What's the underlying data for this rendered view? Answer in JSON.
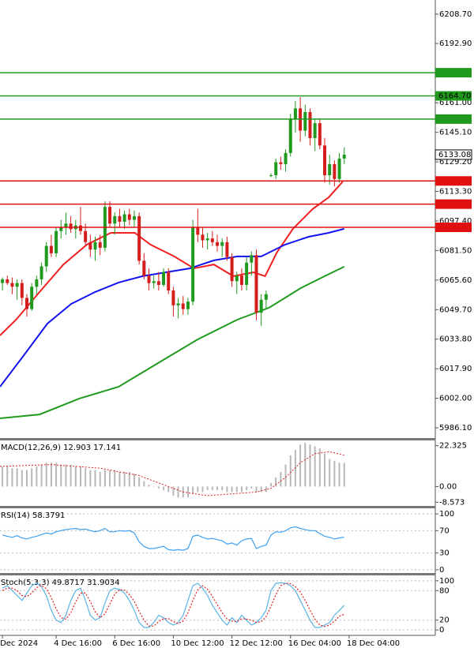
{
  "chart_data": [
    {
      "type": "candlestick",
      "xlim": [
        -0.5,
        88.65
      ],
      "ylim": [
        5980.6,
        6216.3
      ],
      "yticks": [
        {
          "value": 6208.7,
          "label": "6208.70"
        },
        {
          "value": 6192.9,
          "label": "6192.90"
        },
        {
          "value": 6161,
          "label": "6161.00"
        },
        {
          "value": 6145.1,
          "label": "6145.10"
        },
        {
          "value": 6129.2,
          "label": "6129.20"
        },
        {
          "value": 6113.3,
          "label": "6113.30"
        },
        {
          "value": 6097.4,
          "label": "6097.40"
        },
        {
          "value": 6081.5,
          "label": "6081.50"
        },
        {
          "value": 6065.6,
          "label": "6065.60"
        },
        {
          "value": 6049.7,
          "label": "6049.70"
        },
        {
          "value": 6033.8,
          "label": "6033.80"
        },
        {
          "value": 6017.9,
          "label": "6017.90"
        },
        {
          "value": 6002,
          "label": "6002.00"
        },
        {
          "value": 5986.1,
          "label": "5986.10"
        }
      ],
      "up_color": "#1f9a1f",
      "down_color": "#d41e1e",
      "open": [
        6064,
        6066,
        6064,
        6062,
        6064,
        6056,
        6050,
        6062,
        6066,
        6073,
        6084,
        6080,
        6092,
        6094,
        6096,
        6093,
        6095,
        6092,
        6086,
        6082,
        6086,
        6083,
        6105,
        6096,
        6100,
        6097,
        6101,
        6098,
        6100,
        6076,
        6068,
        6064,
        6065,
        6063,
        6070,
        6060,
        6052,
        6053,
        6050,
        6054,
        6094,
        6090,
        6087,
        6088,
        6086,
        6084,
        6086,
        6078,
        6065,
        6068,
        6063,
        6075,
        6079,
        6048,
        6055,
        6122,
        6122,
        6129,
        6128,
        6134,
        6152,
        6158,
        6146,
        6156,
        6142,
        6150,
        6138,
        6122,
        6128,
        6120,
        6131
      ],
      "high": [
        6067,
        6068,
        6067,
        6066,
        6066,
        6058,
        6064,
        6068,
        6075,
        6086,
        6090,
        6094,
        6098,
        6102,
        6100,
        6098,
        6105,
        6096,
        6090,
        6089,
        6090,
        6108,
        6108,
        6102,
        6104,
        6103,
        6104,
        6103,
        6102,
        6080,
        6072,
        6068,
        6070,
        6072,
        6072,
        6062,
        6056,
        6057,
        6056,
        6098,
        6104,
        6094,
        6091,
        6092,
        6090,
        6088,
        6089,
        6080,
        6070,
        6072,
        6078,
        6081,
        6082,
        6058,
        6060,
        6123,
        6131,
        6132,
        6136,
        6155,
        6162,
        6164,
        6160,
        6158,
        6152,
        6152,
        6142,
        6133,
        6130,
        6134,
        6137
      ],
      "low": [
        6060,
        6063,
        6058,
        6055,
        6052,
        6046,
        6049,
        6058,
        6063,
        6070,
        6078,
        6078,
        6088,
        6090,
        6091,
        6088,
        6090,
        6084,
        6078,
        6076,
        6079,
        6081,
        6094,
        6090,
        6094,
        6093,
        6095,
        6094,
        6074,
        6066,
        6060,
        6061,
        6060,
        6062,
        6058,
        6046,
        6045,
        6047,
        6047,
        6052,
        6086,
        6083,
        6082,
        6084,
        6081,
        6078,
        6076,
        6062,
        6058,
        6060,
        6060,
        6068,
        6044,
        6041,
        6050,
        6121,
        6120,
        6125,
        6124,
        6132,
        6145,
        6140,
        6143,
        6138,
        6135,
        6136,
        6118,
        6117,
        6116,
        6118,
        6128
      ],
      "close": [
        6066,
        6064,
        6062,
        6064,
        6056,
        6050,
        6062,
        6066,
        6073,
        6084,
        6080,
        6092,
        6094,
        6096,
        6093,
        6095,
        6092,
        6086,
        6082,
        6086,
        6083,
        6105,
        6096,
        6100,
        6097,
        6101,
        6098,
        6100,
        6076,
        6068,
        6064,
        6065,
        6063,
        6070,
        6060,
        6052,
        6053,
        6050,
        6054,
        6094,
        6090,
        6087,
        6088,
        6086,
        6084,
        6086,
        6078,
        6065,
        6068,
        6063,
        6075,
        6079,
        6048,
        6055,
        6058,
        6122,
        6129,
        6128,
        6134,
        6152,
        6158,
        6146,
        6156,
        6142,
        6150,
        6138,
        6122,
        6128,
        6120,
        6131,
        6133.08
      ],
      "lines": [
        {
          "color": "#f02020",
          "x": [
            -0.5,
            2.8,
            7.6,
            12.5,
            17.3,
            22.2,
            27.1,
            30.3,
            35.2,
            39.2,
            43.3,
            47.3,
            51.4,
            53.8,
            56.2,
            59.5,
            63.5,
            66.8,
            69.7
          ],
          "values": [
            6035.8,
            6044.3,
            6059.2,
            6074,
            6084.7,
            6091,
            6091,
            6084.7,
            6078.3,
            6071.9,
            6074,
            6067.7,
            6069.8,
            6067.7,
            6080.4,
            6093.2,
            6103.8,
            6110.1,
            6118.6
          ]
        },
        {
          "color": "#1414f0",
          "x": [
            -0.5,
            4.4,
            9.2,
            14.1,
            19,
            23.8,
            28.7,
            33.5,
            38.4,
            43.3,
            48.1,
            53,
            57.9,
            62.7,
            66.8,
            70
          ],
          "values": [
            6008.2,
            6025.2,
            6042.2,
            6052.8,
            6059.2,
            6064.3,
            6067.7,
            6069.8,
            6071.9,
            6076.2,
            6078.3,
            6078.3,
            6084.7,
            6088.9,
            6091,
            6093.2
          ]
        },
        {
          "color": "#1f9a1f",
          "x": [
            -0.5,
            7.6,
            15.7,
            23.8,
            31.9,
            40,
            48.1,
            54.6,
            61.1,
            66,
            70
          ],
          "values": [
            5991.2,
            5993.3,
            6001.8,
            6008.2,
            6021,
            6033.7,
            6044.3,
            6050.7,
            6061.3,
            6067.7,
            6072.8
          ]
        }
      ],
      "levels": [
        {
          "value": 6177.18,
          "color": "#1f9a1f"
        },
        {
          "value": 6164.7,
          "label": "6164.70",
          "color": "#1f9a1f"
        },
        {
          "value": 6152.22,
          "color": "#1f9a1f"
        },
        {
          "value": 6118.94,
          "color": "#e01010"
        },
        {
          "value": 6106.46,
          "color": "#e01010"
        },
        {
          "value": 6093.98,
          "color": "#e01010"
        }
      ],
      "current_price": {
        "value": 6133.08
      }
    },
    {
      "type": "macd",
      "title": "MACD(12,26,9) 12.903 17.141",
      "xlim": [
        -0.5,
        88.65
      ],
      "ylim": [
        -10.6,
        25.2
      ],
      "yticks": [
        22.325,
        {
          "value": 0,
          "label": "0.00"
        },
        -8.573
      ],
      "bar_color": "#b8b8b8",
      "values": [
        11,
        11,
        10,
        10,
        9,
        9,
        10,
        11,
        12,
        13,
        13,
        13,
        12,
        12,
        12,
        11,
        11,
        10,
        9,
        9,
        8,
        9,
        9,
        9,
        8,
        8,
        8,
        7,
        5,
        3,
        1,
        0,
        -1,
        -2,
        -3,
        -5,
        -6,
        -6,
        -6,
        -4,
        -3,
        -3,
        -2,
        -2,
        -2,
        -2,
        -3,
        -3,
        -3,
        -3,
        -2,
        -1,
        -3,
        -3,
        -3,
        2,
        5,
        8,
        12,
        17,
        20,
        23,
        24,
        23,
        22,
        21,
        18,
        15,
        14,
        13,
        12.903
      ],
      "signal": {
        "color": "#e02020",
        "x": [
          -0.5,
          10,
          20,
          28,
          33,
          37,
          42,
          47,
          52,
          55,
          58,
          61,
          64,
          67,
          70
        ],
        "values": [
          11,
          12,
          10,
          6,
          1,
          -3,
          -5,
          -4,
          -3,
          -1,
          5,
          13,
          18,
          19,
          17.141
        ]
      }
    },
    {
      "type": "line",
      "title": "RSI(14) 58.3791",
      "xlim": [
        -0.5,
        88.65
      ],
      "ylim": [
        -5.8,
        110
      ],
      "yticks": [
        100,
        70,
        30,
        0
      ],
      "series": [
        {
          "color": "#3fa0f0",
          "values": [
            62,
            60,
            58,
            61,
            57,
            55,
            58,
            60,
            63,
            66,
            64,
            68,
            70,
            72,
            73,
            74,
            72,
            73,
            70,
            68,
            70,
            74,
            68,
            68,
            70,
            69,
            70,
            66,
            50,
            42,
            38,
            38,
            40,
            42,
            36,
            35,
            36,
            35,
            38,
            60,
            62,
            58,
            55,
            56,
            54,
            52,
            46,
            48,
            44,
            52,
            55,
            56,
            38,
            42,
            44,
            62,
            68,
            67,
            70,
            75,
            77,
            74,
            72,
            70,
            70,
            65,
            60,
            58,
            55,
            57,
            58.3791
          ]
        }
      ]
    },
    {
      "type": "line",
      "title": "Stoch(5,3,3) 49.8717 31.9034",
      "xlim": [
        -0.5,
        88.65
      ],
      "ylim": [
        -11,
        111
      ],
      "yticks": [
        100,
        80,
        20,
        0
      ],
      "xticks": [
        {
          "value": 0,
          "label": "Dec 2024"
        },
        {
          "value": 11,
          "label": "4 Dec 16:00"
        },
        {
          "value": 23,
          "label": "6 Dec 16:00"
        },
        {
          "value": 35,
          "label": "10 Dec 12:00"
        },
        {
          "value": 47,
          "label": "12 Dec 12:00"
        },
        {
          "value": 59,
          "label": "16 Dec 04:00"
        },
        {
          "value": 71,
          "label": "18 Dec 04:00"
        }
      ],
      "series": [
        {
          "color": "#5ab4e6",
          "values": [
            85,
            90,
            80,
            70,
            60,
            75,
            90,
            95,
            88,
            70,
            40,
            20,
            15,
            30,
            60,
            80,
            85,
            60,
            30,
            20,
            25,
            55,
            80,
            85,
            82,
            75,
            60,
            40,
            15,
            5,
            5,
            15,
            30,
            25,
            15,
            10,
            15,
            30,
            60,
            90,
            95,
            85,
            70,
            50,
            35,
            20,
            10,
            25,
            15,
            30,
            20,
            10,
            15,
            25,
            40,
            80,
            95,
            96,
            95,
            90,
            80,
            60,
            40,
            20,
            5,
            5,
            10,
            15,
            30,
            40,
            49.8717
          ]
        },
        {
          "color": "#e02020",
          "dashed": true,
          "values": [
            80,
            85,
            85,
            80,
            70,
            68,
            75,
            86,
            91,
            84,
            66,
            43,
            25,
            22,
            35,
            57,
            75,
            75,
            58,
            37,
            25,
            33,
            53,
            73,
            82,
            81,
            72,
            58,
            38,
            20,
            8,
            8,
            17,
            23,
            23,
            17,
            13,
            18,
            35,
            60,
            82,
            90,
            83,
            68,
            52,
            35,
            22,
            18,
            17,
            23,
            22,
            20,
            15,
            17,
            27,
            48,
            72,
            90,
            95,
            94,
            88,
            77,
            60,
            40,
            22,
            10,
            7,
            10,
            18,
            28,
            31.9034
          ]
        }
      ]
    }
  ]
}
